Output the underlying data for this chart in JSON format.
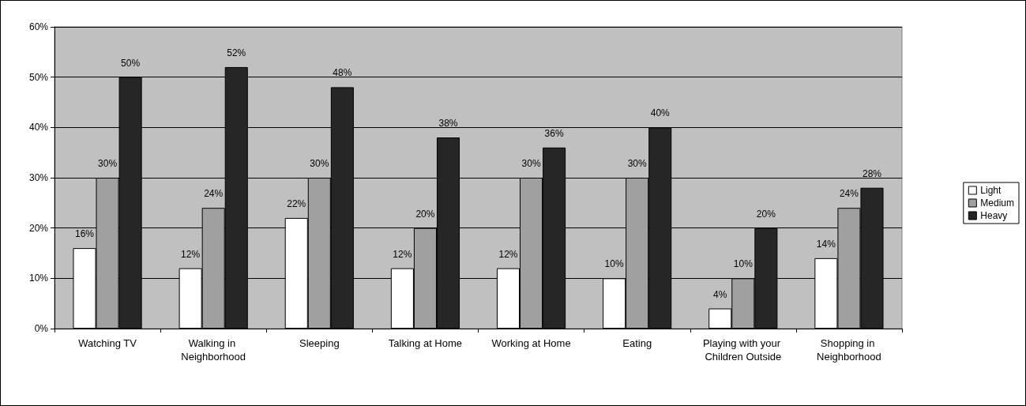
{
  "chart_data": {
    "type": "bar",
    "categories": [
      "Watching TV",
      "Walking in Neighborhood",
      "Sleeping",
      "Talking at Home",
      "Working at Home",
      "Eating",
      "Playing with your Children Outside",
      "Shopping in Neighborhood"
    ],
    "series": [
      {
        "name": "Light",
        "color": "#ffffff",
        "values": [
          16,
          12,
          22,
          12,
          12,
          10,
          4,
          14
        ],
        "value_labels": [
          "16%",
          "12%",
          "22%",
          "12%",
          "12%",
          "10%",
          "4%",
          "14%"
        ]
      },
      {
        "name": "Medium",
        "color": "#a0a0a0",
        "values": [
          30,
          24,
          30,
          20,
          30,
          30,
          10,
          24
        ],
        "value_labels": [
          "30%",
          "24%",
          "30%",
          "20%",
          "30%",
          "30%",
          "10%",
          "24%"
        ]
      },
      {
        "name": "Heavy",
        "color": "#262626",
        "values": [
          50,
          52,
          48,
          38,
          36,
          40,
          20,
          28
        ],
        "value_labels": [
          "50%",
          "52%",
          "48%",
          "38%",
          "36%",
          "40%",
          "20%",
          "28%"
        ]
      }
    ],
    "ylim": [
      0,
      60
    ],
    "yticks": [
      {
        "value": 0,
        "label": "0%"
      },
      {
        "value": 10,
        "label": "10%"
      },
      {
        "value": 20,
        "label": "20%"
      },
      {
        "value": 30,
        "label": "30%"
      },
      {
        "value": 40,
        "label": "40%"
      },
      {
        "value": 50,
        "label": "50%"
      },
      {
        "value": 60,
        "label": "60%"
      }
    ],
    "grid": "y",
    "legend": "right"
  }
}
